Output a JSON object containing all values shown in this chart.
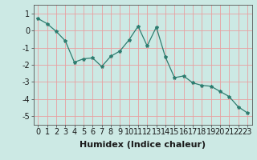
{
  "x": [
    0,
    1,
    2,
    3,
    4,
    5,
    6,
    7,
    8,
    9,
    10,
    11,
    12,
    13,
    14,
    15,
    16,
    17,
    18,
    19,
    20,
    21,
    22,
    23
  ],
  "y": [
    0.7,
    0.4,
    -0.05,
    -0.6,
    -1.85,
    -1.65,
    -1.6,
    -2.1,
    -1.5,
    -1.2,
    -0.55,
    0.25,
    -0.9,
    0.2,
    -1.55,
    -2.75,
    -2.65,
    -3.05,
    -3.2,
    -3.25,
    -3.55,
    -3.85,
    -4.45,
    -4.8
  ],
  "line_color": "#2e7d70",
  "marker": "*",
  "marker_size": 3,
  "bg_color": "#cce9e4",
  "grid_color": "#e8a0a0",
  "xlabel": "Humidex (Indice chaleur)",
  "ylim": [
    -5.5,
    1.5
  ],
  "xlim": [
    -0.5,
    23.5
  ],
  "yticks": [
    1,
    0,
    -1,
    -2,
    -3,
    -4,
    -5
  ],
  "xtick_labels": [
    "0",
    "1",
    "2",
    "3",
    "4",
    "5",
    "6",
    "7",
    "8",
    "9",
    "10",
    "11",
    "12",
    "13",
    "14",
    "15",
    "16",
    "17",
    "18",
    "19",
    "20",
    "21",
    "22",
    "23"
  ],
  "xlabel_fontsize": 8,
  "tick_fontsize": 7
}
